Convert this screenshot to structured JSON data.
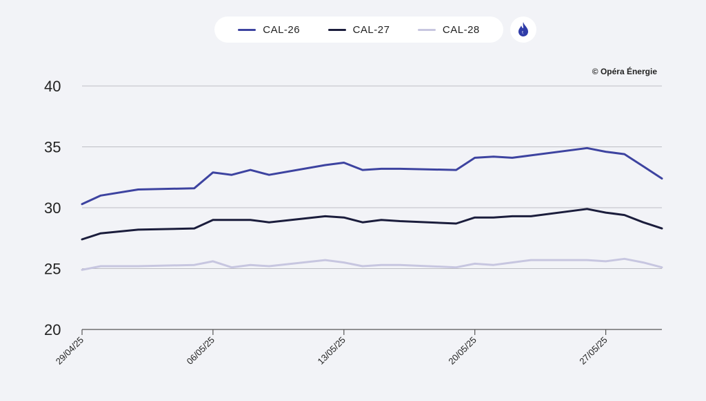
{
  "colors": {
    "background": "#f2f3f7",
    "grid": "#bdbdc4"
  },
  "legend": {
    "items": [
      {
        "label": "CAL-26",
        "color": "#3d43a0"
      },
      {
        "label": "CAL-27",
        "color": "#1b1d3c"
      },
      {
        "label": "CAL-28",
        "color": "#c7c6e0"
      }
    ],
    "energy_icon": "flame-icon",
    "energy_icon_color": "#2f3ca8"
  },
  "copyright": "© Opéra Énergie",
  "chart_data": {
    "type": "line",
    "ylim": [
      20,
      40
    ],
    "yticks": [
      20,
      25,
      30,
      35,
      40
    ],
    "grid": true,
    "legend_position": "top-center",
    "xticks": [
      "29/04/25",
      "06/05/25",
      "13/05/25",
      "20/05/25",
      "27/05/25"
    ],
    "x": [
      "29/04/25",
      "30/04/25",
      "02/05/25",
      "05/05/25",
      "06/05/25",
      "07/05/25",
      "08/05/25",
      "09/05/25",
      "12/05/25",
      "13/05/25",
      "14/05/25",
      "15/05/25",
      "16/05/25",
      "19/05/25",
      "20/05/25",
      "21/05/25",
      "22/05/25",
      "23/05/25",
      "26/05/25",
      "27/05/25",
      "28/05/25",
      "29/05/25",
      "30/05/25"
    ],
    "series": [
      {
        "name": "CAL-26",
        "color": "#3d43a0",
        "values": [
          30.3,
          31.0,
          31.5,
          31.6,
          32.9,
          32.7,
          33.1,
          32.7,
          33.5,
          33.7,
          33.1,
          33.2,
          33.2,
          33.1,
          34.1,
          34.2,
          34.1,
          34.3,
          34.9,
          34.6,
          34.4,
          33.4,
          32.4
        ]
      },
      {
        "name": "CAL-27",
        "color": "#1b1d3c",
        "values": [
          27.4,
          27.9,
          28.2,
          28.3,
          29.0,
          29.0,
          29.0,
          28.8,
          29.3,
          29.2,
          28.8,
          29.0,
          28.9,
          28.7,
          29.2,
          29.2,
          29.3,
          29.3,
          29.9,
          29.6,
          29.4,
          28.8,
          28.3
        ]
      },
      {
        "name": "CAL-28",
        "color": "#c7c6e0",
        "values": [
          24.9,
          25.2,
          25.2,
          25.3,
          25.6,
          25.1,
          25.3,
          25.2,
          25.7,
          25.5,
          25.2,
          25.3,
          25.3,
          25.1,
          25.4,
          25.3,
          25.5,
          25.7,
          25.7,
          25.6,
          25.8,
          25.5,
          25.1
        ]
      }
    ]
  }
}
